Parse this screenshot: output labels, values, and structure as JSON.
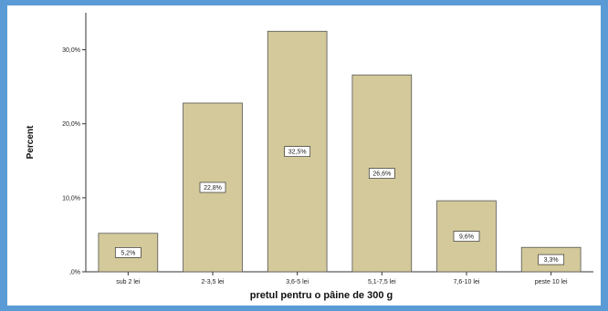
{
  "chart_data": {
    "type": "bar",
    "title": "",
    "xlabel": "pretul pentru o pâine de 300 g",
    "ylabel": "Percent",
    "categories": [
      "sub 2 lei",
      "2-3,5 lei",
      "3,6-5 lei",
      "5,1-7,5 lei",
      "7,6-10 lei",
      "peste 10 lei"
    ],
    "values": [
      5.2,
      22.8,
      32.5,
      26.6,
      9.6,
      3.3
    ],
    "data_labels": [
      "5,2%",
      "22,8%",
      "32,5%",
      "26,6%",
      "9,6%",
      "3,3%"
    ],
    "yticks": [
      0,
      10,
      20,
      30
    ],
    "ytick_labels": [
      ",0%",
      "10,0%",
      "20,0%",
      "30,0%"
    ],
    "ylim": [
      0,
      35
    ],
    "grid": false,
    "legend": "none",
    "colors": {
      "bar_fill": "#d4c99a",
      "bar_stroke": "#555555",
      "frame": "#5b9bd5",
      "background": "#ffffff"
    }
  }
}
